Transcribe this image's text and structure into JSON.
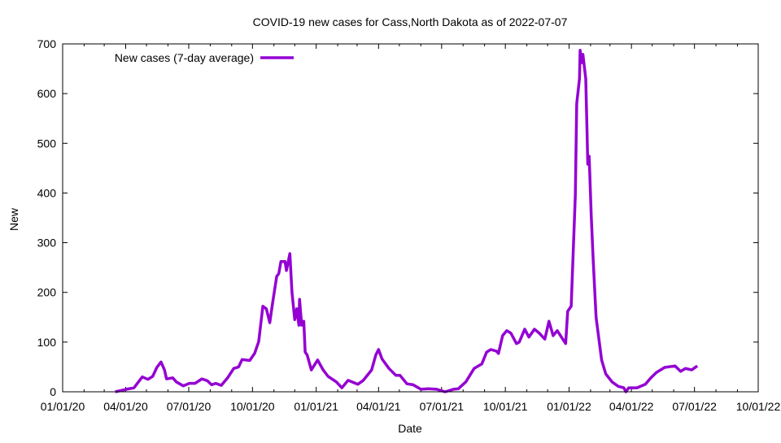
{
  "chart_data": {
    "type": "line",
    "title": "COVID-19 new cases for Cass,North Dakota as of 2022-07-07",
    "xlabel": "Date",
    "ylabel": "New",
    "x_unit": "days since 2020-01-01",
    "x_origin": "2020-01-01",
    "xlim_dates": [
      "2020-01-01",
      "2022-10-01"
    ],
    "ylim": [
      0,
      700
    ],
    "yticks": [
      0,
      100,
      200,
      300,
      400,
      500,
      600,
      700
    ],
    "xtick_labels": [
      "01/01/20",
      "04/01/20",
      "07/01/20",
      "10/01/20",
      "01/01/21",
      "04/01/21",
      "07/01/21",
      "10/01/21",
      "01/01/22",
      "04/01/22",
      "07/01/22",
      "10/01/22"
    ],
    "grid": false,
    "legend_position": "top-left",
    "series": [
      {
        "name": "New cases (7-day average)",
        "color": "#9400d3",
        "x": [
          76,
          92,
          103,
          115,
          123,
          130,
          136,
          142,
          147,
          150,
          159,
          164,
          174,
          183,
          191,
          201,
          209,
          215,
          221,
          229,
          238,
          247,
          254,
          259,
          270,
          277,
          283,
          289,
          294,
          299,
          303,
          309,
          312,
          315,
          321,
          323,
          328,
          331,
          335,
          338,
          341,
          342,
          345,
          348,
          350,
          353,
          359,
          368,
          376,
          383,
          395,
          403,
          412,
          426,
          434,
          446,
          452,
          456,
          461,
          471,
          481,
          487,
          497,
          506,
          517,
          528,
          540,
          552,
          564,
          571,
          582,
          594,
          605,
          612,
          618,
          626,
          629,
          635,
          641,
          647,
          655,
          659,
          667,
          673,
          681,
          688,
          696,
          702,
          708,
          714,
          720,
          726,
          729,
          734,
          740,
          742,
          746,
          747,
          749,
          751,
          755,
          757,
          758,
          760,
          763,
          766,
          770,
          778,
          784,
          793,
          802,
          810,
          813,
          817,
          829,
          841,
          849,
          857,
          869,
          884,
          892,
          899,
          908,
          916
        ],
        "y": [
          0,
          5,
          8,
          30,
          25,
          31,
          49,
          60,
          44,
          26,
          28,
          20,
          12,
          17,
          17,
          26,
          22,
          14,
          17,
          13,
          28,
          47,
          50,
          65,
          63,
          77,
          101,
          172,
          167,
          139,
          178,
          232,
          238,
          262,
          262,
          244,
          278,
          200,
          145,
          167,
          134,
          186,
          134,
          142,
          80,
          74,
          44,
          64,
          44,
          31,
          20,
          8,
          23,
          15,
          23,
          44,
          74,
          85,
          66,
          47,
          33,
          33,
          16,
          14,
          5,
          6,
          5,
          0,
          5,
          6,
          20,
          47,
          56,
          80,
          85,
          82,
          77,
          113,
          123,
          118,
          97,
          100,
          126,
          110,
          126,
          118,
          106,
          142,
          113,
          123,
          110,
          97,
          162,
          172,
          396,
          580,
          630,
          687,
          662,
          679,
          630,
          515,
          458,
          474,
          352,
          260,
          150,
          64,
          36,
          20,
          11,
          8,
          0,
          8,
          8,
          15,
          28,
          39,
          49,
          52,
          41,
          47,
          44,
          52
        ]
      }
    ]
  }
}
